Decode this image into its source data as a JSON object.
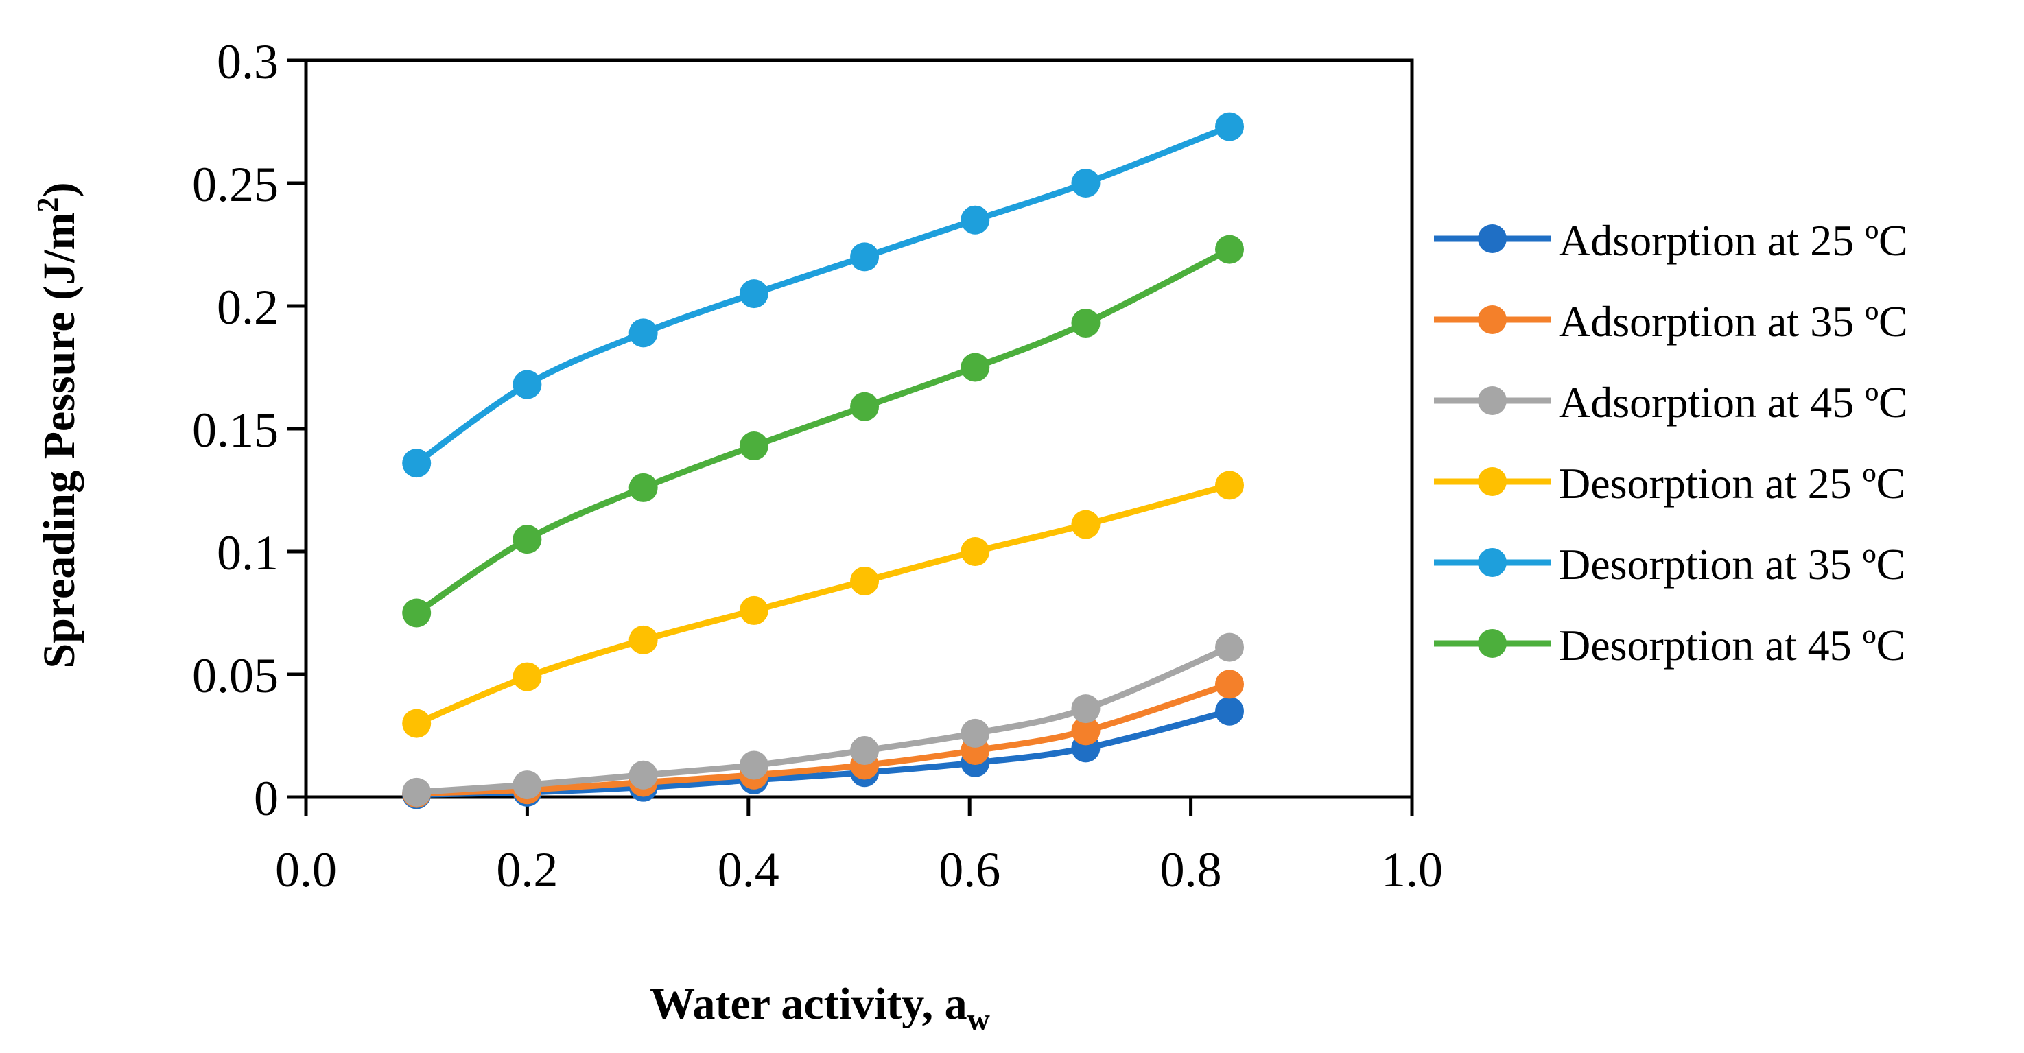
{
  "chart_data": {
    "type": "line",
    "title": "",
    "xlabel": "Water activity, a",
    "xlabel_sub": "w",
    "ylabel": "Spreading Pessure (J/m",
    "ylabel_sup": "2",
    "ylabel_close": ")",
    "xlim": [
      0.0,
      1.0
    ],
    "ylim": [
      0,
      0.3
    ],
    "x_ticks": [
      "0.0",
      "0.2",
      "0.4",
      "0.6",
      "0.8",
      "1.0"
    ],
    "y_ticks": [
      "0",
      "0.05",
      "0.1",
      "0.15",
      "0.2",
      "0.25",
      "0.3"
    ],
    "grid": false,
    "legend_position": "right",
    "series": [
      {
        "name": "Adsorption at 25 ºC",
        "color": "#1f6fc5",
        "x": [
          0.1,
          0.2,
          0.305,
          0.405,
          0.505,
          0.605,
          0.705,
          0.835
        ],
        "y": [
          0.001,
          0.002,
          0.004,
          0.007,
          0.01,
          0.014,
          0.02,
          0.035
        ]
      },
      {
        "name": "Adsorption at 35 ºC",
        "color": "#f4802a",
        "x": [
          0.1,
          0.2,
          0.305,
          0.405,
          0.505,
          0.605,
          0.705,
          0.835
        ],
        "y": [
          0.0015,
          0.003,
          0.006,
          0.009,
          0.013,
          0.019,
          0.027,
          0.046
        ]
      },
      {
        "name": "Adsorption at 45 ºC",
        "color": "#a6a6a6",
        "x": [
          0.1,
          0.2,
          0.305,
          0.405,
          0.505,
          0.605,
          0.705,
          0.835
        ],
        "y": [
          0.002,
          0.005,
          0.009,
          0.013,
          0.019,
          0.026,
          0.036,
          0.061
        ]
      },
      {
        "name": "Desorption at 25 ºC",
        "color": "#ffc000",
        "x": [
          0.1,
          0.2,
          0.305,
          0.405,
          0.505,
          0.605,
          0.705,
          0.835
        ],
        "y": [
          0.03,
          0.049,
          0.064,
          0.076,
          0.088,
          0.1,
          0.111,
          0.127
        ]
      },
      {
        "name": "Desorption at 35 ºC",
        "color": "#1e9fdc",
        "x": [
          0.1,
          0.2,
          0.305,
          0.405,
          0.505,
          0.605,
          0.705,
          0.835
        ],
        "y": [
          0.136,
          0.168,
          0.189,
          0.205,
          0.22,
          0.235,
          0.25,
          0.273
        ]
      },
      {
        "name": "Desorption at 45 ºC",
        "color": "#4caf3c",
        "x": [
          0.1,
          0.2,
          0.305,
          0.405,
          0.505,
          0.605,
          0.705,
          0.835
        ],
        "y": [
          0.075,
          0.105,
          0.126,
          0.143,
          0.159,
          0.175,
          0.193,
          0.223
        ]
      }
    ]
  }
}
